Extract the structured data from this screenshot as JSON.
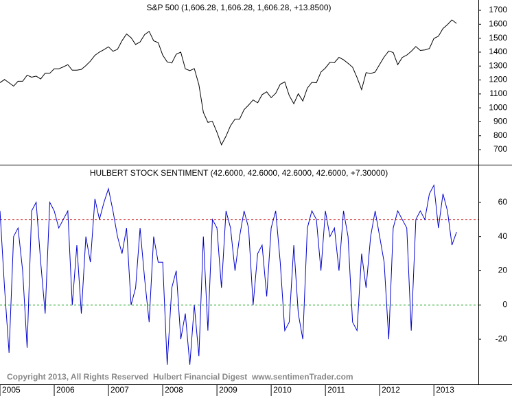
{
  "chart_data": [
    {
      "type": "line",
      "title": "S&P 500 (1,606.28, 1,606.28, 1,606.28, +13.8500)",
      "xlim": [
        2005,
        2013.82
      ],
      "ylim": [
        592,
        1774
      ],
      "yticks": [
        700,
        800,
        900,
        1000,
        1100,
        1200,
        1300,
        1400,
        1500,
        1600,
        1700
      ],
      "x": [
        2005,
        2005.083,
        2005.167,
        2005.25,
        2005.333,
        2005.417,
        2005.5,
        2005.583,
        2005.667,
        2005.75,
        2005.833,
        2005.917,
        2006,
        2006.083,
        2006.167,
        2006.25,
        2006.333,
        2006.417,
        2006.5,
        2006.583,
        2006.667,
        2006.75,
        2006.833,
        2006.917,
        2007,
        2007.083,
        2007.167,
        2007.25,
        2007.333,
        2007.417,
        2007.5,
        2007.583,
        2007.667,
        2007.75,
        2007.833,
        2007.917,
        2008,
        2008.083,
        2008.167,
        2008.25,
        2008.333,
        2008.417,
        2008.5,
        2008.583,
        2008.667,
        2008.75,
        2008.833,
        2008.917,
        2009,
        2009.083,
        2009.167,
        2009.25,
        2009.333,
        2009.417,
        2009.5,
        2009.583,
        2009.667,
        2009.75,
        2009.833,
        2009.917,
        2010,
        2010.083,
        2010.167,
        2010.25,
        2010.333,
        2010.417,
        2010.5,
        2010.583,
        2010.667,
        2010.75,
        2010.833,
        2010.917,
        2011,
        2011.083,
        2011.167,
        2011.25,
        2011.333,
        2011.417,
        2011.5,
        2011.583,
        2011.667,
        2011.75,
        2011.833,
        2011.917,
        2012,
        2012.083,
        2012.167,
        2012.25,
        2012.333,
        2012.417,
        2012.5,
        2012.583,
        2012.667,
        2012.75,
        2012.833,
        2012.917,
        2013,
        2013.083,
        2013.167,
        2013.25,
        2013.333,
        2013.417
      ],
      "series": [
        {
          "color": "#000000",
          "values": [
            1181,
            1203,
            1180,
            1156,
            1191,
            1191,
            1234,
            1220,
            1228,
            1207,
            1249,
            1248,
            1280,
            1280,
            1294,
            1310,
            1270,
            1270,
            1276,
            1303,
            1335,
            1377,
            1400,
            1418,
            1438,
            1406,
            1420,
            1482,
            1530,
            1503,
            1455,
            1473,
            1526,
            1549,
            1481,
            1468,
            1378,
            1330,
            1322,
            1385,
            1400,
            1280,
            1267,
            1282,
            1166,
            968,
            896,
            903,
            825,
            735,
            797,
            872,
            919,
            919,
            987,
            1020,
            1057,
            1036,
            1095,
            1115,
            1073,
            1104,
            1169,
            1186,
            1089,
            1030,
            1101,
            1049,
            1141,
            1183,
            1180,
            1257,
            1286,
            1327,
            1325,
            1363,
            1345,
            1320,
            1292,
            1218,
            1131,
            1253,
            1246,
            1257,
            1312,
            1365,
            1408,
            1397,
            1310,
            1362,
            1379,
            1406,
            1440,
            1412,
            1416,
            1426,
            1498,
            1514,
            1569,
            1597,
            1631,
            1606
          ]
        }
      ]
    },
    {
      "type": "line",
      "title": "HULBERT STOCK SENTIMENT (42.6000, 42.6000, 42.6000, 42.6000, +7.30000)",
      "xlim": [
        2005,
        2013.82
      ],
      "ylim": [
        -46.4,
        81.6
      ],
      "yticks": [
        -20,
        0,
        20,
        40,
        60
      ],
      "xticks": [
        2005,
        2006,
        2007,
        2008,
        2009,
        2010,
        2011,
        2012,
        2013
      ],
      "hlines": [
        {
          "value": 50,
          "color": "#cc0000"
        },
        {
          "value": 0,
          "color": "#009900"
        }
      ],
      "x": [
        2005,
        2005.083,
        2005.167,
        2005.25,
        2005.333,
        2005.417,
        2005.5,
        2005.583,
        2005.667,
        2005.75,
        2005.833,
        2005.917,
        2006,
        2006.083,
        2006.167,
        2006.25,
        2006.333,
        2006.417,
        2006.5,
        2006.583,
        2006.667,
        2006.75,
        2006.833,
        2006.917,
        2007,
        2007.083,
        2007.167,
        2007.25,
        2007.333,
        2007.417,
        2007.5,
        2007.583,
        2007.667,
        2007.75,
        2007.833,
        2007.917,
        2008,
        2008.083,
        2008.167,
        2008.25,
        2008.333,
        2008.417,
        2008.5,
        2008.583,
        2008.667,
        2008.75,
        2008.833,
        2008.917,
        2009,
        2009.083,
        2009.167,
        2009.25,
        2009.333,
        2009.417,
        2009.5,
        2009.583,
        2009.667,
        2009.75,
        2009.833,
        2009.917,
        2010,
        2010.083,
        2010.167,
        2010.25,
        2010.333,
        2010.417,
        2010.5,
        2010.583,
        2010.667,
        2010.75,
        2010.833,
        2010.917,
        2011,
        2011.083,
        2011.167,
        2011.25,
        2011.333,
        2011.417,
        2011.5,
        2011.583,
        2011.667,
        2011.75,
        2011.833,
        2011.917,
        2012,
        2012.083,
        2012.167,
        2012.25,
        2012.333,
        2012.417,
        2012.5,
        2012.583,
        2012.667,
        2012.75,
        2012.833,
        2012.917,
        2013,
        2013.083,
        2013.167,
        2013.25,
        2013.333,
        2013.417
      ],
      "series": [
        {
          "color": "#0000cc",
          "values": [
            55,
            10,
            -28,
            40,
            45,
            20,
            -25,
            55,
            60,
            25,
            -5,
            60,
            55,
            45,
            50,
            55,
            0,
            35,
            -5,
            40,
            25,
            62,
            50,
            60,
            68,
            55,
            40,
            30,
            45,
            0,
            10,
            45,
            15,
            -10,
            40,
            25,
            25,
            -35,
            10,
            20,
            -20,
            -5,
            -35,
            0,
            -30,
            40,
            -15,
            50,
            45,
            10,
            55,
            45,
            20,
            40,
            55,
            45,
            0,
            30,
            35,
            5,
            45,
            55,
            25,
            -15,
            -10,
            35,
            -5,
            -20,
            45,
            55,
            50,
            20,
            55,
            40,
            45,
            20,
            55,
            40,
            -10,
            -15,
            30,
            10,
            40,
            55,
            40,
            25,
            -20,
            45,
            55,
            50,
            45,
            -15,
            50,
            55,
            50,
            65,
            70,
            45,
            65,
            55,
            35,
            42.6
          ]
        }
      ]
    }
  ],
  "footer": "Copyright 2013, All Rights Reserved  Hulbert Financial Digest  www.sentimenTrader.com"
}
